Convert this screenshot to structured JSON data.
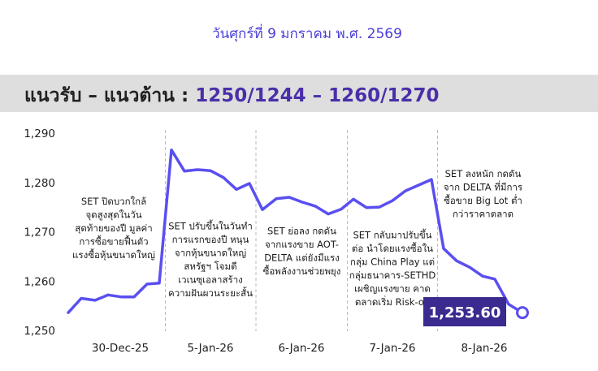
{
  "header": {
    "date": "วันศุกร์ที่ 9 มกราคม พ.ศ. 2569"
  },
  "banner": {
    "label": "แนวรับ – แนวต้าน : ",
    "range": "1250/1244 – 1260/1270"
  },
  "colors": {
    "line": "#5a4ff0",
    "badge_bg": "#3b2a8f",
    "banner_bg": "#dedede",
    "range_text": "#4a2fa8",
    "divider": "#bbbbbb"
  },
  "chart_data": {
    "type": "line",
    "title": "",
    "xlabel": "",
    "ylabel": "",
    "ylim": [
      1250,
      1290
    ],
    "yticks": [
      "1,250",
      "1,260",
      "1,270",
      "1,280",
      "1,290"
    ],
    "grid": false,
    "day_labels": [
      "30-Dec-25",
      "5-Jan-26",
      "6-Jan-26",
      "7-Jan-26",
      "8-Jan-26"
    ],
    "series": [
      {
        "values": [
          1253.6,
          1256.5,
          1256.1,
          1257.2,
          1256.8,
          1256.8,
          1259.4,
          1259.6,
          1286.6,
          1282.3,
          1282.6,
          1282.4,
          1281.0,
          1278.6,
          1279.8,
          1274.5,
          1276.7,
          1277.0,
          1276.0,
          1275.2,
          1273.6,
          1274.6,
          1276.6,
          1274.9,
          1275.0,
          1276.3,
          1278.3,
          1280.6,
          1266.6,
          1264.1,
          1262.8,
          1261.0,
          1260.4,
          1255.3,
          1253.6
        ]
      }
    ],
    "last_value_label": "1,253.60",
    "annotations": [
      {
        "day": 0,
        "lines": [
          "SET ปิดบวกใกล้",
          "จุดสูงสุดในวัน",
          "สุดท้ายของปี มูลค่า",
          "การซื้อขายฟื้นตัว",
          "แรงซื้อหุ้นขนาดใหญ่"
        ]
      },
      {
        "day": 1,
        "lines": [
          "SET ปรับขึ้นในวันทำ",
          "การแรกของปี หนุน",
          "จากหุ้นขนาดใหญ่",
          "สหรัฐฯ โจมตี",
          "เวเนซุเอลาสร้าง",
          "ความฝันผวนระยะสั้น"
        ]
      },
      {
        "day": 2,
        "lines": [
          "SET ย่อลง กดดัน",
          "จากแรงขาย AOT-",
          "DELTA แต่ยังมีแรง",
          "ซื้อพลังงานช่วยพยุง"
        ]
      },
      {
        "day": 3,
        "lines": [
          "SET กลับมาปรับขึ้น",
          "ต่อ นำโดยแรงซื้อใน",
          "กลุ่ม China Play แต่",
          "กลุ่มธนาคาร-SETHD",
          "เผชิญแรงขาย คาด",
          "ตลาดเริ่ม Risk-on"
        ]
      },
      {
        "day": 4,
        "lines": [
          "SET ลงหนัก กดดัน",
          "จาก DELTA ที่มีการ",
          "ซื้อขาย Big Lot ต่ำ",
          "กว่าราคาตลาด"
        ]
      }
    ]
  }
}
